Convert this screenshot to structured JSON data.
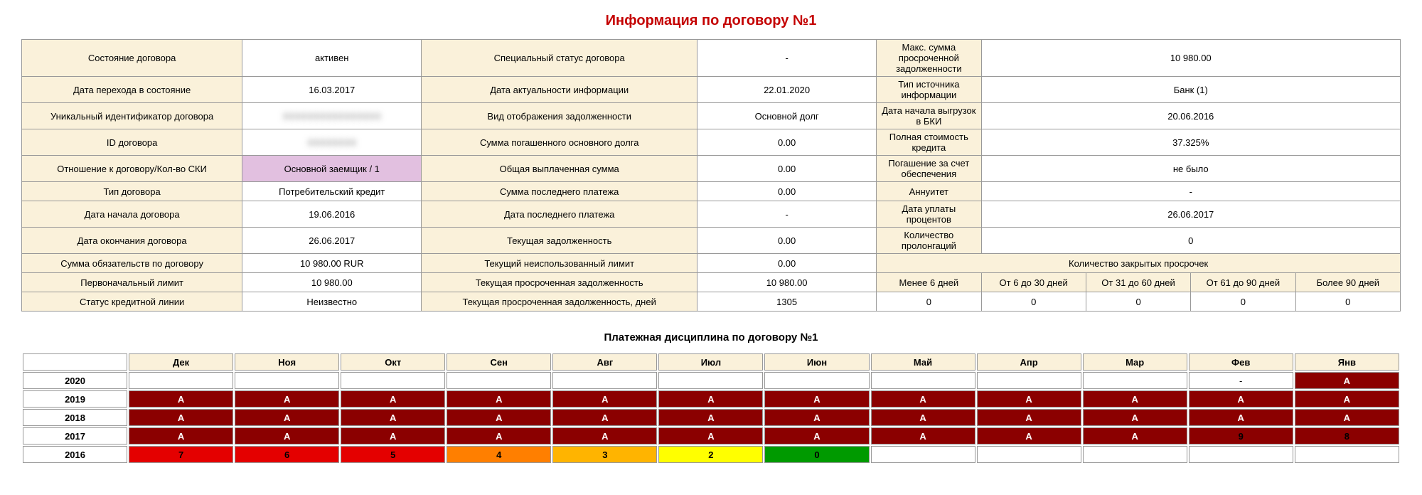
{
  "title": "Информация по договору №1",
  "subtitle": "Платежная дисциплина по договору №1",
  "info": {
    "rows": [
      [
        {
          "t": "Состояние договора",
          "c": "lbl"
        },
        {
          "t": "активен",
          "c": "val"
        },
        {
          "t": "Специальный статус договора",
          "c": "lbl"
        },
        {
          "t": "-",
          "c": "val"
        },
        {
          "t": "Макс. сумма просроченной задолженности",
          "c": "lbl"
        },
        {
          "t": "10 980.00",
          "c": "val"
        }
      ],
      [
        {
          "t": "Дата перехода в состояние",
          "c": "lbl"
        },
        {
          "t": "16.03.2017",
          "c": "val"
        },
        {
          "t": "Дата актуальности информации",
          "c": "lbl"
        },
        {
          "t": "22.01.2020",
          "c": "val"
        },
        {
          "t": "Тип источника информации",
          "c": "lbl"
        },
        {
          "t": "Банк  (1)",
          "c": "val"
        }
      ],
      [
        {
          "t": "Уникальный идентификатор договора",
          "c": "lbl"
        },
        {
          "t": "XXXXXXXXXXXXXXXX",
          "c": "val blur"
        },
        {
          "t": "Вид отображения задолженности",
          "c": "lbl"
        },
        {
          "t": "Основной долг",
          "c": "val"
        },
        {
          "t": "Дата начала выгрузок в БКИ",
          "c": "lbl"
        },
        {
          "t": "20.06.2016",
          "c": "val"
        }
      ],
      [
        {
          "t": "ID договора",
          "c": "lbl"
        },
        {
          "t": "XXXXXXXX",
          "c": "val blur"
        },
        {
          "t": "Сумма погашенного основного долга",
          "c": "lbl"
        },
        {
          "t": "0.00",
          "c": "val"
        },
        {
          "t": "Полная стоимость кредита",
          "c": "lbl"
        },
        {
          "t": "37.325%",
          "c": "val"
        }
      ],
      [
        {
          "t": "Отношение к договору/Кол-во СКИ",
          "c": "lbl"
        },
        {
          "t": "Основной заемщик / 1",
          "c": "hl"
        },
        {
          "t": "Общая выплаченная сумма",
          "c": "lbl"
        },
        {
          "t": "0.00",
          "c": "val"
        },
        {
          "t": "Погашение за счет обеспечения",
          "c": "lbl"
        },
        {
          "t": "не было",
          "c": "val"
        }
      ],
      [
        {
          "t": "Тип договора",
          "c": "lbl"
        },
        {
          "t": "Потребительский кредит",
          "c": "val"
        },
        {
          "t": "Сумма последнего платежа",
          "c": "lbl"
        },
        {
          "t": "0.00",
          "c": "val"
        },
        {
          "t": "Аннуитет",
          "c": "lbl"
        },
        {
          "t": "-",
          "c": "val"
        }
      ],
      [
        {
          "t": "Дата начала договора",
          "c": "lbl"
        },
        {
          "t": "19.06.2016",
          "c": "val"
        },
        {
          "t": "Дата последнего платежа",
          "c": "lbl"
        },
        {
          "t": "-",
          "c": "val"
        },
        {
          "t": "Дата уплаты процентов",
          "c": "lbl"
        },
        {
          "t": "26.06.2017",
          "c": "val"
        }
      ],
      [
        {
          "t": "Дата окончания договора",
          "c": "lbl"
        },
        {
          "t": "26.06.2017",
          "c": "val"
        },
        {
          "t": "Текущая задолженность",
          "c": "lbl"
        },
        {
          "t": "0.00",
          "c": "val"
        },
        {
          "t": "Количество пролонгаций",
          "c": "lbl"
        },
        {
          "t": "0",
          "c": "val"
        }
      ],
      [
        {
          "t": "Сумма обязательств по договору",
          "c": "lbl"
        },
        {
          "t": "10 980.00  RUR",
          "c": "val"
        },
        {
          "t": "Текущий неиспользованный лимит",
          "c": "lbl"
        },
        {
          "t": "0.00",
          "c": "val"
        },
        {
          "t": "Количество закрытых просрочек",
          "c": "lbl",
          "colspan": 5
        }
      ],
      [
        {
          "t": "Первоначальный лимит",
          "c": "lbl"
        },
        {
          "t": "10 980.00",
          "c": "val"
        },
        {
          "t": "Текущая просроченная задолженность",
          "c": "lbl"
        },
        {
          "t": "10 980.00",
          "c": "val"
        },
        {
          "t": "Менее 6 дней",
          "c": "lbl"
        },
        {
          "t": "От 6 до 30 дней",
          "c": "lbl"
        },
        {
          "t": "От 31 до 60 дней",
          "c": "lbl"
        },
        {
          "t": "От 61 до 90 дней",
          "c": "lbl"
        },
        {
          "t": "Более 90 дней",
          "c": "lbl"
        }
      ],
      [
        {
          "t": "Статус кредитной линии",
          "c": "lbl"
        },
        {
          "t": "Неизвестно",
          "c": "val"
        },
        {
          "t": "Текущая просроченная задолженность, дней",
          "c": "lbl"
        },
        {
          "t": "1305",
          "c": "val"
        },
        {
          "t": "0",
          "c": "val"
        },
        {
          "t": "0",
          "c": "val"
        },
        {
          "t": "0",
          "c": "val"
        },
        {
          "t": "0",
          "c": "val"
        },
        {
          "t": "0",
          "c": "val"
        }
      ]
    ],
    "col_widths_pct": [
      16,
      13,
      20,
      13,
      7.6,
      7.6,
      7.6,
      7.6,
      7.6
    ]
  },
  "discipline": {
    "months": [
      "Дек",
      "Ноя",
      "Окт",
      "Сен",
      "Авг",
      "Июл",
      "Июн",
      "Май",
      "Апр",
      "Мар",
      "Фев",
      "Янв"
    ],
    "rows": [
      {
        "year": "2020",
        "cells": [
          {
            "v": "",
            "k": "empty"
          },
          {
            "v": "",
            "k": "empty"
          },
          {
            "v": "",
            "k": "empty"
          },
          {
            "v": "",
            "k": "empty"
          },
          {
            "v": "",
            "k": "empty"
          },
          {
            "v": "",
            "k": "empty"
          },
          {
            "v": "",
            "k": "empty"
          },
          {
            "v": "",
            "k": "empty"
          },
          {
            "v": "",
            "k": "empty"
          },
          {
            "v": "",
            "k": "empty"
          },
          {
            "v": "-",
            "k": "empty"
          },
          {
            "v": "A",
            "k": "c-darkred"
          }
        ]
      },
      {
        "year": "2019",
        "cells": [
          {
            "v": "A",
            "k": "c-darkred"
          },
          {
            "v": "A",
            "k": "c-darkred"
          },
          {
            "v": "A",
            "k": "c-darkred"
          },
          {
            "v": "A",
            "k": "c-darkred"
          },
          {
            "v": "A",
            "k": "c-darkred"
          },
          {
            "v": "A",
            "k": "c-darkred"
          },
          {
            "v": "A",
            "k": "c-darkred"
          },
          {
            "v": "A",
            "k": "c-darkred"
          },
          {
            "v": "A",
            "k": "c-darkred"
          },
          {
            "v": "A",
            "k": "c-darkred"
          },
          {
            "v": "A",
            "k": "c-darkred"
          },
          {
            "v": "A",
            "k": "c-darkred"
          }
        ]
      },
      {
        "year": "2018",
        "cells": [
          {
            "v": "A",
            "k": "c-darkred"
          },
          {
            "v": "A",
            "k": "c-darkred"
          },
          {
            "v": "A",
            "k": "c-darkred"
          },
          {
            "v": "A",
            "k": "c-darkred"
          },
          {
            "v": "A",
            "k": "c-darkred"
          },
          {
            "v": "A",
            "k": "c-darkred"
          },
          {
            "v": "A",
            "k": "c-darkred"
          },
          {
            "v": "A",
            "k": "c-darkred"
          },
          {
            "v": "A",
            "k": "c-darkred"
          },
          {
            "v": "A",
            "k": "c-darkred"
          },
          {
            "v": "A",
            "k": "c-darkred"
          },
          {
            "v": "A",
            "k": "c-darkred"
          }
        ]
      },
      {
        "year": "2017",
        "cells": [
          {
            "v": "A",
            "k": "c-darkred"
          },
          {
            "v": "A",
            "k": "c-darkred"
          },
          {
            "v": "A",
            "k": "c-darkred"
          },
          {
            "v": "A",
            "k": "c-darkred"
          },
          {
            "v": "A",
            "k": "c-darkred"
          },
          {
            "v": "A",
            "k": "c-darkred"
          },
          {
            "v": "A",
            "k": "c-darkred"
          },
          {
            "v": "A",
            "k": "c-darkred"
          },
          {
            "v": "A",
            "k": "c-darkred"
          },
          {
            "v": "A",
            "k": "c-darkred"
          },
          {
            "v": "9",
            "k": "c-darkred2"
          },
          {
            "v": "8",
            "k": "c-darkred2"
          }
        ]
      },
      {
        "year": "2016",
        "cells": [
          {
            "v": "7",
            "k": "c-red"
          },
          {
            "v": "6",
            "k": "c-red"
          },
          {
            "v": "5",
            "k": "c-red"
          },
          {
            "v": "4",
            "k": "c-orange"
          },
          {
            "v": "3",
            "k": "c-yelor"
          },
          {
            "v": "2",
            "k": "c-yellow"
          },
          {
            "v": "0",
            "k": "c-green"
          },
          {
            "v": "",
            "k": "empty"
          },
          {
            "v": "",
            "k": "empty"
          },
          {
            "v": "",
            "k": "empty"
          },
          {
            "v": "",
            "k": "empty"
          },
          {
            "v": "",
            "k": "empty"
          }
        ]
      }
    ]
  },
  "colors": {
    "title": "#c40000",
    "label_bg": "#faf1da",
    "highlight_bg": "#e2c0e0",
    "border": "#999999",
    "darkred": "#8b0000",
    "red": "#e40000",
    "orange": "#ff7f00",
    "yellow_orange": "#ffb400",
    "yellow": "#ffff00",
    "green": "#009a00"
  }
}
